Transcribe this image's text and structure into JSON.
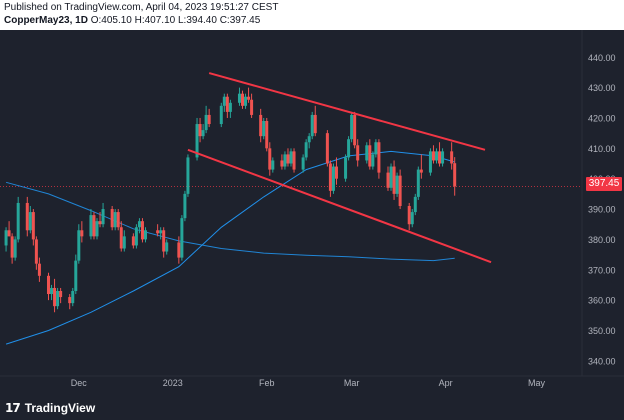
{
  "header": {
    "published": "Published on TradingView.com, April 04, 2023 19:51:27 CEST",
    "symbol": "CopperMay23, 1D",
    "ohlc": "O:405.10 H:407.10 L:394.40 C:397.45"
  },
  "brand": {
    "logo": "17",
    "name": "TradingView"
  },
  "chart_data": {
    "type": "candlestick",
    "title": "",
    "y_ticks": [
      "440.00",
      "430.00",
      "420.00",
      "410.00",
      "400.00",
      "390.00",
      "380.00",
      "370.00",
      "360.00",
      "350.00",
      "340.00"
    ],
    "y_tick_values": [
      440,
      430,
      420,
      410,
      400,
      390,
      380,
      370,
      360,
      350,
      340
    ],
    "x_ticks": [
      "Dec",
      "2023",
      "Feb",
      "Mar",
      "Apr",
      "May"
    ],
    "x_tick_dates": [
      "2022-12-01",
      "2023-01-01",
      "2023-02-01",
      "2023-03-01",
      "2023-04-01",
      "2023-05-01"
    ],
    "ylim": [
      335,
      447
    ],
    "xlim": [
      "2022-11-05",
      "2023-05-16"
    ],
    "last_price": "397.45",
    "last_price_value": 397.45,
    "colors": {
      "up": "#26a69a",
      "down": "#ef5350",
      "ma_fast": "#2196f3",
      "ma_slow": "#2962ff",
      "trendline": "#f23645"
    },
    "candles": [
      [
        "2022-11-07",
        378,
        384,
        376,
        383
      ],
      [
        "2022-11-08",
        383,
        386,
        381,
        381
      ],
      [
        "2022-11-09",
        381,
        382,
        372,
        374
      ],
      [
        "2022-11-10",
        374,
        381,
        373,
        380
      ],
      [
        "2022-11-11",
        380,
        394,
        379,
        392
      ],
      [
        "2022-11-14",
        392,
        394,
        381,
        383
      ],
      [
        "2022-11-15",
        383,
        391,
        382,
        389
      ],
      [
        "2022-11-16",
        389,
        390,
        378,
        380
      ],
      [
        "2022-11-17",
        380,
        381,
        370,
        372
      ],
      [
        "2022-11-18",
        372,
        374,
        366,
        368
      ],
      [
        "2022-11-21",
        368,
        369,
        360,
        362
      ],
      [
        "2022-11-22",
        362,
        365,
        360,
        364
      ],
      [
        "2022-11-23",
        364,
        367,
        356,
        358
      ],
      [
        "2022-11-24",
        358,
        364,
        357,
        363
      ],
      [
        "2022-11-25",
        363,
        364,
        359,
        361
      ],
      [
        "2022-11-28",
        361,
        362,
        357,
        359
      ],
      [
        "2022-11-29",
        359,
        364,
        358,
        363
      ],
      [
        "2022-11-30",
        363,
        375,
        362,
        373
      ],
      [
        "2022-12-01",
        373,
        385,
        372,
        383
      ],
      [
        "2022-12-02",
        383,
        386,
        379,
        381
      ],
      [
        "2022-12-05",
        381,
        390,
        380,
        388
      ],
      [
        "2022-12-06",
        388,
        389,
        380,
        381
      ],
      [
        "2022-12-07",
        381,
        387,
        380,
        386
      ],
      [
        "2022-12-08",
        386,
        389,
        384,
        385
      ],
      [
        "2022-12-09",
        385,
        392,
        384,
        390
      ],
      [
        "2022-12-12",
        390,
        391,
        383,
        384
      ],
      [
        "2022-12-13",
        384,
        390,
        383,
        389
      ],
      [
        "2022-12-14",
        389,
        390,
        383,
        384
      ],
      [
        "2022-12-15",
        384,
        386,
        376,
        377
      ],
      [
        "2022-12-16",
        377,
        383,
        376,
        381
      ],
      [
        "2022-12-19",
        381,
        382,
        377,
        378
      ],
      [
        "2022-12-20",
        378,
        385,
        377,
        384
      ],
      [
        "2022-12-21",
        384,
        387,
        382,
        386
      ],
      [
        "2022-12-22",
        386,
        387,
        379,
        380
      ],
      [
        "2022-12-23",
        380,
        384,
        379,
        383
      ],
      [
        "2022-12-27",
        383,
        385,
        381,
        382
      ],
      [
        "2022-12-28",
        382,
        384,
        380,
        383
      ],
      [
        "2022-12-29",
        383,
        384,
        374,
        376
      ],
      [
        "2022-12-30",
        376,
        380,
        375,
        379
      ],
      [
        "2023-01-03",
        379,
        381,
        372,
        374
      ],
      [
        "2023-01-04",
        374,
        388,
        373,
        387
      ],
      [
        "2023-01-05",
        387,
        396,
        386,
        395
      ],
      [
        "2023-01-06",
        395,
        408,
        394,
        407
      ],
      [
        "2023-01-09",
        407,
        420,
        406,
        418
      ],
      [
        "2023-01-10",
        418,
        420,
        412,
        414
      ],
      [
        "2023-01-11",
        414,
        418,
        413,
        416
      ],
      [
        "2023-01-12",
        416,
        424,
        415,
        421
      ],
      [
        "2023-01-13",
        421,
        423,
        417,
        418
      ],
      [
        "2023-01-17",
        418,
        425,
        417,
        424
      ],
      [
        "2023-01-18",
        424,
        428,
        422,
        427
      ],
      [
        "2023-01-19",
        427,
        428,
        420,
        422
      ],
      [
        "2023-01-20",
        422,
        426,
        420,
        425
      ],
      [
        "2023-01-23",
        425,
        430,
        424,
        428
      ],
      [
        "2023-01-24",
        428,
        429,
        423,
        424
      ],
      [
        "2023-01-25",
        424,
        428,
        423,
        427
      ],
      [
        "2023-01-26",
        427,
        430,
        425,
        426
      ],
      [
        "2023-01-27",
        426,
        428,
        420,
        421
      ],
      [
        "2023-01-30",
        421,
        423,
        412,
        414
      ],
      [
        "2023-01-31",
        414,
        420,
        413,
        419
      ],
      [
        "2023-02-01",
        419,
        420,
        409,
        410
      ],
      [
        "2023-02-02",
        410,
        412,
        401,
        403
      ],
      [
        "2023-02-03",
        403,
        407,
        402,
        406
      ],
      [
        "2023-02-06",
        406,
        408,
        403,
        404
      ],
      [
        "2023-02-07",
        404,
        409,
        403,
        408
      ],
      [
        "2023-02-08",
        408,
        410,
        404,
        405
      ],
      [
        "2023-02-09",
        405,
        410,
        404,
        409
      ],
      [
        "2023-02-10",
        409,
        410,
        402,
        403
      ],
      [
        "2023-02-13",
        403,
        408,
        402,
        407
      ],
      [
        "2023-02-14",
        407,
        413,
        406,
        412
      ],
      [
        "2023-02-15",
        412,
        415,
        410,
        414
      ],
      [
        "2023-02-16",
        414,
        422,
        413,
        421
      ],
      [
        "2023-02-17",
        421,
        424,
        414,
        415
      ],
      [
        "2023-02-21",
        415,
        416,
        404,
        405
      ],
      [
        "2023-02-22",
        405,
        406,
        394,
        396
      ],
      [
        "2023-02-23",
        396,
        405,
        395,
        404
      ],
      [
        "2023-02-24",
        404,
        407,
        398,
        400
      ],
      [
        "2023-02-27",
        400,
        408,
        399,
        407
      ],
      [
        "2023-02-28",
        407,
        414,
        406,
        413
      ],
      [
        "2023-03-01",
        413,
        422,
        412,
        421
      ],
      [
        "2023-03-02",
        421,
        422,
        410,
        411
      ],
      [
        "2023-03-03",
        411,
        413,
        404,
        406
      ],
      [
        "2023-03-06",
        406,
        412,
        405,
        411
      ],
      [
        "2023-03-07",
        411,
        413,
        403,
        404
      ],
      [
        "2023-03-08",
        404,
        409,
        403,
        408
      ],
      [
        "2023-03-09",
        408,
        413,
        407,
        412
      ],
      [
        "2023-03-10",
        412,
        413,
        400,
        402
      ],
      [
        "2023-03-13",
        402,
        404,
        396,
        397
      ],
      [
        "2023-03-14",
        397,
        405,
        396,
        404
      ],
      [
        "2023-03-15",
        404,
        406,
        393,
        395
      ],
      [
        "2023-03-16",
        395,
        402,
        394,
        401
      ],
      [
        "2023-03-17",
        401,
        403,
        390,
        391
      ],
      [
        "2023-03-20",
        391,
        392,
        383,
        385
      ],
      [
        "2023-03-21",
        385,
        390,
        384,
        389
      ],
      [
        "2023-03-22",
        389,
        395,
        388,
        394
      ],
      [
        "2023-03-23",
        394,
        404,
        393,
        403
      ],
      [
        "2023-03-24",
        403,
        408,
        400,
        402
      ],
      [
        "2023-03-27",
        402,
        410,
        401,
        409
      ],
      [
        "2023-03-28",
        409,
        411,
        405,
        406
      ],
      [
        "2023-03-29",
        406,
        410,
        405,
        409
      ],
      [
        "2023-03-30",
        409,
        412,
        404,
        405
      ],
      [
        "2023-03-31",
        405,
        410,
        404,
        409
      ],
      [
        "2023-04-03",
        409,
        412,
        403,
        405
      ],
      [
        "2023-04-04",
        405.1,
        407.1,
        394.4,
        397.45
      ]
    ],
    "ma_fast": {
      "x": [
        "2022-11-07",
        "2022-11-21",
        "2022-12-05",
        "2022-12-19",
        "2023-01-03",
        "2023-01-17",
        "2023-01-31",
        "2023-02-14",
        "2023-02-28",
        "2023-03-14",
        "2023-03-28",
        "2023-04-04"
      ],
      "y": [
        345.5,
        350.0,
        356.0,
        363.0,
        371.0,
        384.0,
        394.0,
        403.0,
        407.5,
        409.0,
        407.5,
        405.5
      ]
    },
    "ma_slow": {
      "x": [
        "2022-11-07",
        "2022-11-21",
        "2022-12-05",
        "2022-12-19",
        "2023-01-03",
        "2023-01-17",
        "2023-01-31",
        "2023-02-14",
        "2023-02-28",
        "2023-03-14",
        "2023-03-28",
        "2023-04-04"
      ],
      "y": [
        398.8,
        395.0,
        389.5,
        383.5,
        379.5,
        377.0,
        375.5,
        374.8,
        374.3,
        373.5,
        373.0,
        373.8
      ]
    },
    "trendlines": [
      {
        "x": [
          "2023-01-13",
          "2023-04-14"
        ],
        "y": [
          434.8,
          409.5
        ]
      },
      {
        "x": [
          "2023-01-06",
          "2023-04-16"
        ],
        "y": [
          409.5,
          372.5
        ]
      }
    ],
    "grid": false
  }
}
